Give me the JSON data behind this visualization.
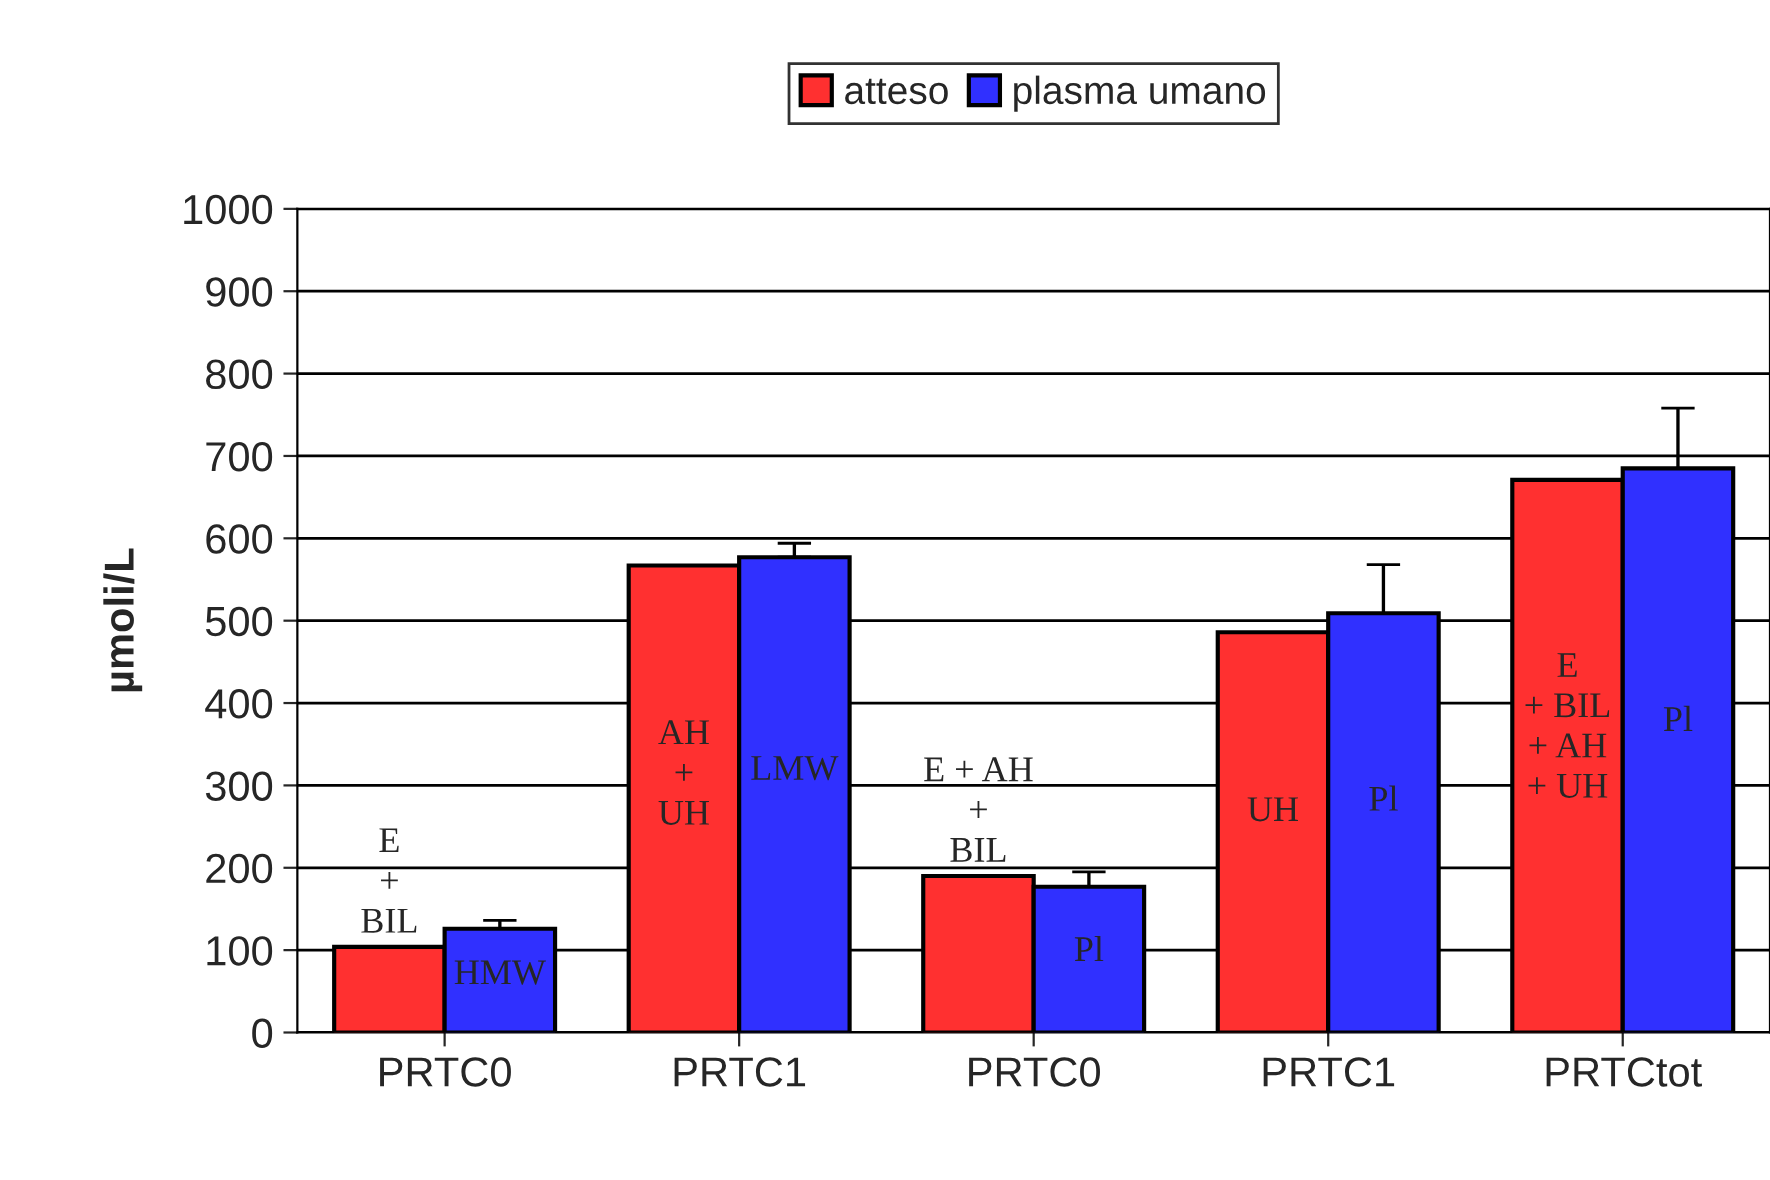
{
  "chart_data": {
    "type": "bar",
    "ylabel": "µmoli/L",
    "categories": [
      "PRTC0",
      "PRTC1",
      "PRTC0",
      "PRTC1",
      "PRTCtot"
    ],
    "series": [
      {
        "name": "atteso",
        "color": "#ff3030",
        "values": [
          104,
          567,
          190,
          486,
          671
        ]
      },
      {
        "name": "plasma umano",
        "color": "#3030ff",
        "values": [
          126,
          577,
          177,
          509,
          685
        ],
        "errors": [
          10,
          17,
          18,
          59,
          73
        ]
      }
    ],
    "ylim": [
      0,
      1000
    ],
    "yticks": [
      0,
      100,
      200,
      300,
      400,
      500,
      600,
      700,
      800,
      900,
      1000
    ],
    "grid": "y",
    "legend": "top",
    "annotations": [
      "E\n+\nBIL",
      "HMW",
      "AH\n+\nUH",
      "LMW",
      "E + AH\n+\nBIL",
      "Pl",
      "UH",
      "Pl",
      "E\n+ BIL\n+ AH\n+ UH",
      "Pl"
    ]
  }
}
